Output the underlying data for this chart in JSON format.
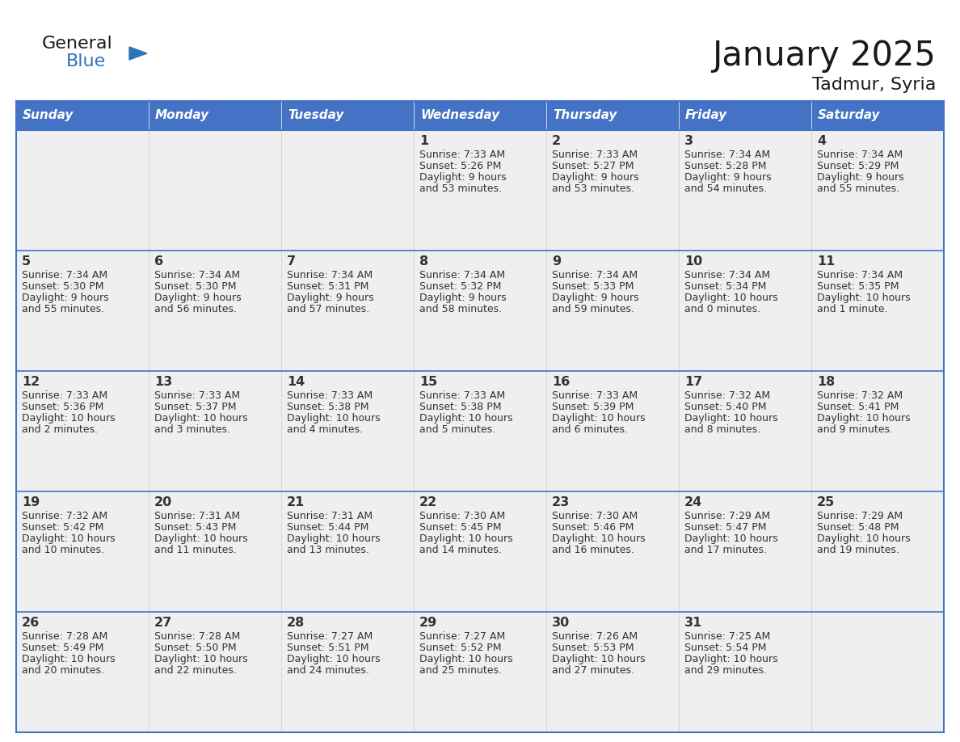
{
  "title": "January 2025",
  "subtitle": "Tadmur, Syria",
  "days_of_week": [
    "Sunday",
    "Monday",
    "Tuesday",
    "Wednesday",
    "Thursday",
    "Friday",
    "Saturday"
  ],
  "header_bg": "#4472C4",
  "header_text": "#FFFFFF",
  "cell_bg": "#EFEFEF",
  "border_color": "#4472C4",
  "sep_color": "#4472C4",
  "text_color": "#333333",
  "logo_general_color": "#1a1a1a",
  "logo_blue_color": "#2E75B6",
  "calendar_data": [
    [
      null,
      null,
      null,
      {
        "day": 1,
        "sunrise": "7:33 AM",
        "sunset": "5:26 PM",
        "daylight_line1": "Daylight: 9 hours",
        "daylight_line2": "and 53 minutes."
      },
      {
        "day": 2,
        "sunrise": "7:33 AM",
        "sunset": "5:27 PM",
        "daylight_line1": "Daylight: 9 hours",
        "daylight_line2": "and 53 minutes."
      },
      {
        "day": 3,
        "sunrise": "7:34 AM",
        "sunset": "5:28 PM",
        "daylight_line1": "Daylight: 9 hours",
        "daylight_line2": "and 54 minutes."
      },
      {
        "day": 4,
        "sunrise": "7:34 AM",
        "sunset": "5:29 PM",
        "daylight_line1": "Daylight: 9 hours",
        "daylight_line2": "and 55 minutes."
      }
    ],
    [
      {
        "day": 5,
        "sunrise": "7:34 AM",
        "sunset": "5:30 PM",
        "daylight_line1": "Daylight: 9 hours",
        "daylight_line2": "and 55 minutes."
      },
      {
        "day": 6,
        "sunrise": "7:34 AM",
        "sunset": "5:30 PM",
        "daylight_line1": "Daylight: 9 hours",
        "daylight_line2": "and 56 minutes."
      },
      {
        "day": 7,
        "sunrise": "7:34 AM",
        "sunset": "5:31 PM",
        "daylight_line1": "Daylight: 9 hours",
        "daylight_line2": "and 57 minutes."
      },
      {
        "day": 8,
        "sunrise": "7:34 AM",
        "sunset": "5:32 PM",
        "daylight_line1": "Daylight: 9 hours",
        "daylight_line2": "and 58 minutes."
      },
      {
        "day": 9,
        "sunrise": "7:34 AM",
        "sunset": "5:33 PM",
        "daylight_line1": "Daylight: 9 hours",
        "daylight_line2": "and 59 minutes."
      },
      {
        "day": 10,
        "sunrise": "7:34 AM",
        "sunset": "5:34 PM",
        "daylight_line1": "Daylight: 10 hours",
        "daylight_line2": "and 0 minutes."
      },
      {
        "day": 11,
        "sunrise": "7:34 AM",
        "sunset": "5:35 PM",
        "daylight_line1": "Daylight: 10 hours",
        "daylight_line2": "and 1 minute."
      }
    ],
    [
      {
        "day": 12,
        "sunrise": "7:33 AM",
        "sunset": "5:36 PM",
        "daylight_line1": "Daylight: 10 hours",
        "daylight_line2": "and 2 minutes."
      },
      {
        "day": 13,
        "sunrise": "7:33 AM",
        "sunset": "5:37 PM",
        "daylight_line1": "Daylight: 10 hours",
        "daylight_line2": "and 3 minutes."
      },
      {
        "day": 14,
        "sunrise": "7:33 AM",
        "sunset": "5:38 PM",
        "daylight_line1": "Daylight: 10 hours",
        "daylight_line2": "and 4 minutes."
      },
      {
        "day": 15,
        "sunrise": "7:33 AM",
        "sunset": "5:38 PM",
        "daylight_line1": "Daylight: 10 hours",
        "daylight_line2": "and 5 minutes."
      },
      {
        "day": 16,
        "sunrise": "7:33 AM",
        "sunset": "5:39 PM",
        "daylight_line1": "Daylight: 10 hours",
        "daylight_line2": "and 6 minutes."
      },
      {
        "day": 17,
        "sunrise": "7:32 AM",
        "sunset": "5:40 PM",
        "daylight_line1": "Daylight: 10 hours",
        "daylight_line2": "and 8 minutes."
      },
      {
        "day": 18,
        "sunrise": "7:32 AM",
        "sunset": "5:41 PM",
        "daylight_line1": "Daylight: 10 hours",
        "daylight_line2": "and 9 minutes."
      }
    ],
    [
      {
        "day": 19,
        "sunrise": "7:32 AM",
        "sunset": "5:42 PM",
        "daylight_line1": "Daylight: 10 hours",
        "daylight_line2": "and 10 minutes."
      },
      {
        "day": 20,
        "sunrise": "7:31 AM",
        "sunset": "5:43 PM",
        "daylight_line1": "Daylight: 10 hours",
        "daylight_line2": "and 11 minutes."
      },
      {
        "day": 21,
        "sunrise": "7:31 AM",
        "sunset": "5:44 PM",
        "daylight_line1": "Daylight: 10 hours",
        "daylight_line2": "and 13 minutes."
      },
      {
        "day": 22,
        "sunrise": "7:30 AM",
        "sunset": "5:45 PM",
        "daylight_line1": "Daylight: 10 hours",
        "daylight_line2": "and 14 minutes."
      },
      {
        "day": 23,
        "sunrise": "7:30 AM",
        "sunset": "5:46 PM",
        "daylight_line1": "Daylight: 10 hours",
        "daylight_line2": "and 16 minutes."
      },
      {
        "day": 24,
        "sunrise": "7:29 AM",
        "sunset": "5:47 PM",
        "daylight_line1": "Daylight: 10 hours",
        "daylight_line2": "and 17 minutes."
      },
      {
        "day": 25,
        "sunrise": "7:29 AM",
        "sunset": "5:48 PM",
        "daylight_line1": "Daylight: 10 hours",
        "daylight_line2": "and 19 minutes."
      }
    ],
    [
      {
        "day": 26,
        "sunrise": "7:28 AM",
        "sunset": "5:49 PM",
        "daylight_line1": "Daylight: 10 hours",
        "daylight_line2": "and 20 minutes."
      },
      {
        "day": 27,
        "sunrise": "7:28 AM",
        "sunset": "5:50 PM",
        "daylight_line1": "Daylight: 10 hours",
        "daylight_line2": "and 22 minutes."
      },
      {
        "day": 28,
        "sunrise": "7:27 AM",
        "sunset": "5:51 PM",
        "daylight_line1": "Daylight: 10 hours",
        "daylight_line2": "and 24 minutes."
      },
      {
        "day": 29,
        "sunrise": "7:27 AM",
        "sunset": "5:52 PM",
        "daylight_line1": "Daylight: 10 hours",
        "daylight_line2": "and 25 minutes."
      },
      {
        "day": 30,
        "sunrise": "7:26 AM",
        "sunset": "5:53 PM",
        "daylight_line1": "Daylight: 10 hours",
        "daylight_line2": "and 27 minutes."
      },
      {
        "day": 31,
        "sunrise": "7:25 AM",
        "sunset": "5:54 PM",
        "daylight_line1": "Daylight: 10 hours",
        "daylight_line2": "and 29 minutes."
      },
      null
    ]
  ],
  "figsize": [
    11.88,
    9.18
  ],
  "dpi": 100
}
